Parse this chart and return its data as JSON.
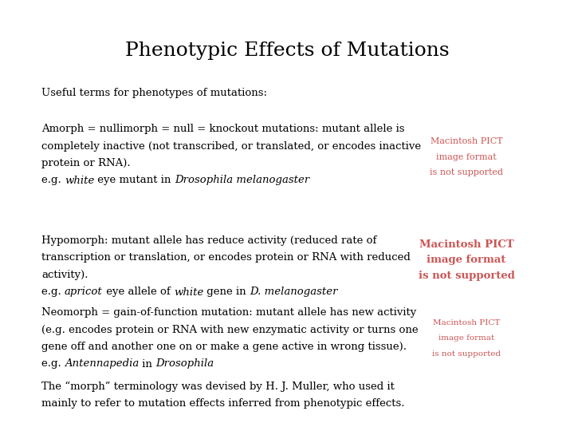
{
  "title": "Phenotypic Effects of Mutations",
  "title_fontsize": 18,
  "title_font": "DejaVu Serif",
  "background_color": "#ffffff",
  "text_color": "#000000",
  "pict_color": "#cc5555",
  "body_fontsize": 9.5,
  "body_font": "DejaVu Serif",
  "subtitle": "Useful terms for phenotypes of mutations:",
  "sections": [
    {
      "lines": [
        "Amorph = nullimorph = null = knockout mutations: mutant allele is",
        "completely inactive (not transcribed, or translated, or encodes inactive",
        "protein or RNA)."
      ],
      "example_segments": [
        [
          "e.g. ",
          false
        ],
        [
          "white",
          true
        ],
        [
          " eye mutant in ",
          false
        ],
        [
          "Drosophila melanogaster",
          true
        ]
      ],
      "has_pict": true,
      "pict_lines": [
        "Macintosh PICT",
        "image format",
        "is not supported"
      ],
      "pict_fontsize": 8.0,
      "pict_bold": false
    },
    {
      "lines": [
        "Hypomorph: mutant allele has reduce activity (reduced rate of",
        "transcription or translation, or encodes protein or RNA with reduced",
        "activity)."
      ],
      "example_segments": [
        [
          "e.g. ",
          false
        ],
        [
          "apricot",
          true
        ],
        [
          " eye allele of ",
          false
        ],
        [
          "white",
          true
        ],
        [
          " gene in ",
          false
        ],
        [
          "D. melanogaster",
          true
        ]
      ],
      "has_pict": true,
      "pict_lines": [
        "Macintosh PICT",
        "image format",
        "is not supported"
      ],
      "pict_fontsize": 9.5,
      "pict_bold": true
    },
    {
      "lines": [
        "Neomorph = gain-of-function mutation: mutant allele has new activity",
        "(e.g. encodes protein or RNA with new enzymatic activity or turns one",
        "gene off and another one on or make a gene active in wrong tissue)."
      ],
      "example_segments": [
        [
          "e.g. ",
          false
        ],
        [
          "Antennapedia",
          true
        ],
        [
          " in ",
          false
        ],
        [
          "Drosophila",
          true
        ]
      ],
      "has_pict": true,
      "pict_lines": [
        "Macintosh PICT",
        "image format",
        "is not supported"
      ],
      "pict_fontsize": 7.5,
      "pict_bold": false
    },
    {
      "lines": [
        "The “morph” terminology was devised by H. J. Muller, who used it",
        "mainly to refer to mutation effects inferred from phenotypic effects."
      ],
      "example_segments": [],
      "has_pict": false,
      "pict_lines": [],
      "pict_fontsize": 0,
      "pict_bold": false
    }
  ]
}
